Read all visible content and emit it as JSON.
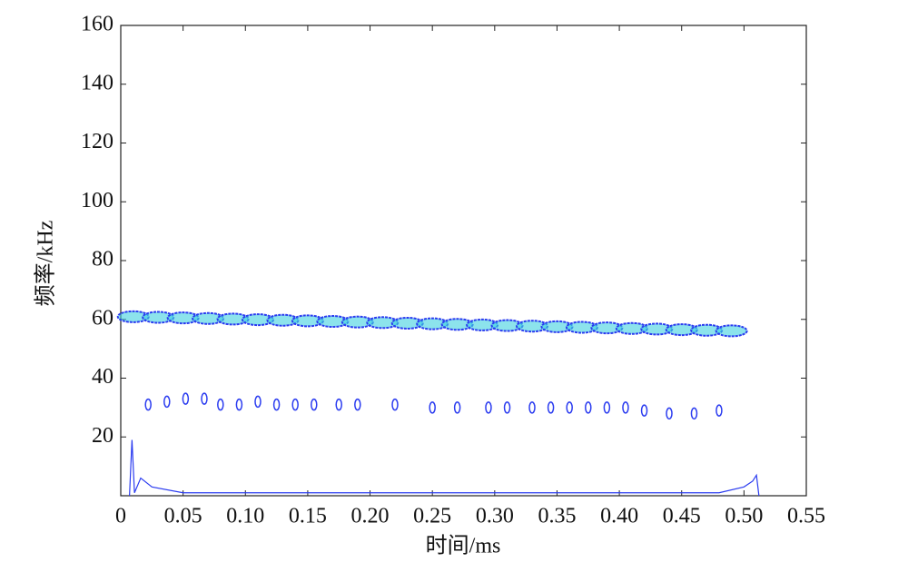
{
  "chart_data": {
    "type": "contour",
    "x_label": "时间/ms",
    "y_label": "频率/kHz",
    "xlim": [
      0,
      0.55
    ],
    "ylim": [
      0,
      160
    ],
    "xticks": [
      0,
      0.05,
      {
        "value": 0.1,
        "label": "0.10"
      },
      0.15,
      {
        "value": 0.2,
        "label": "0.20"
      },
      0.25,
      {
        "value": 0.3,
        "label": "0.30"
      },
      0.35,
      {
        "value": 0.4,
        "label": "0.40"
      },
      0.45,
      {
        "value": 0.5,
        "label": "0.50"
      },
      0.55
    ],
    "yticks": [
      20,
      40,
      60,
      80,
      100,
      120,
      140,
      160
    ],
    "series": [
      {
        "style": "blobs",
        "color": "#2b3cf0",
        "fill": "#3fd0e0",
        "x": [
          0.01,
          0.03,
          0.05,
          0.07,
          0.09,
          0.11,
          0.13,
          0.15,
          0.17,
          0.19,
          0.21,
          0.23,
          0.25,
          0.27,
          0.29,
          0.31,
          0.33,
          0.35,
          0.37,
          0.39,
          0.41,
          0.43,
          0.45,
          0.47,
          0.49
        ],
        "y": [
          60.9,
          60.7,
          60.5,
          60.3,
          60.1,
          59.9,
          59.7,
          59.5,
          59.3,
          59.1,
          58.9,
          58.7,
          58.5,
          58.3,
          58.1,
          57.9,
          57.7,
          57.5,
          57.3,
          57.1,
          56.9,
          56.7,
          56.5,
          56.3,
          56.1
        ]
      },
      {
        "style": "dots",
        "color": "#2b3cf0",
        "x": [
          0.022,
          0.037,
          0.052,
          0.067,
          0.08,
          0.095,
          0.11,
          0.125,
          0.14,
          0.155,
          0.175,
          0.19,
          0.22,
          0.25,
          0.27,
          0.295,
          0.31,
          0.33,
          0.345,
          0.36,
          0.375,
          0.39,
          0.405,
          0.42,
          0.44,
          0.46,
          0.48
        ],
        "y": [
          31,
          32,
          33,
          33,
          31,
          31,
          32,
          31,
          31,
          31,
          31,
          31,
          31,
          30,
          30,
          30,
          30,
          30,
          30,
          30,
          30,
          30,
          30,
          29,
          28,
          28,
          29
        ]
      },
      {
        "style": "line",
        "color": "#2b3cf0",
        "x": [
          0.007,
          0.009,
          0.011,
          0.016,
          0.025,
          0.05,
          0.1,
          0.15,
          0.2,
          0.25,
          0.3,
          0.35,
          0.4,
          0.45,
          0.48,
          0.5,
          0.507,
          0.51,
          0.512
        ],
        "y": [
          0,
          19,
          1,
          6,
          3,
          1,
          1,
          1,
          1,
          1,
          1,
          1,
          1,
          1,
          1,
          3,
          5,
          7,
          0
        ]
      }
    ]
  }
}
